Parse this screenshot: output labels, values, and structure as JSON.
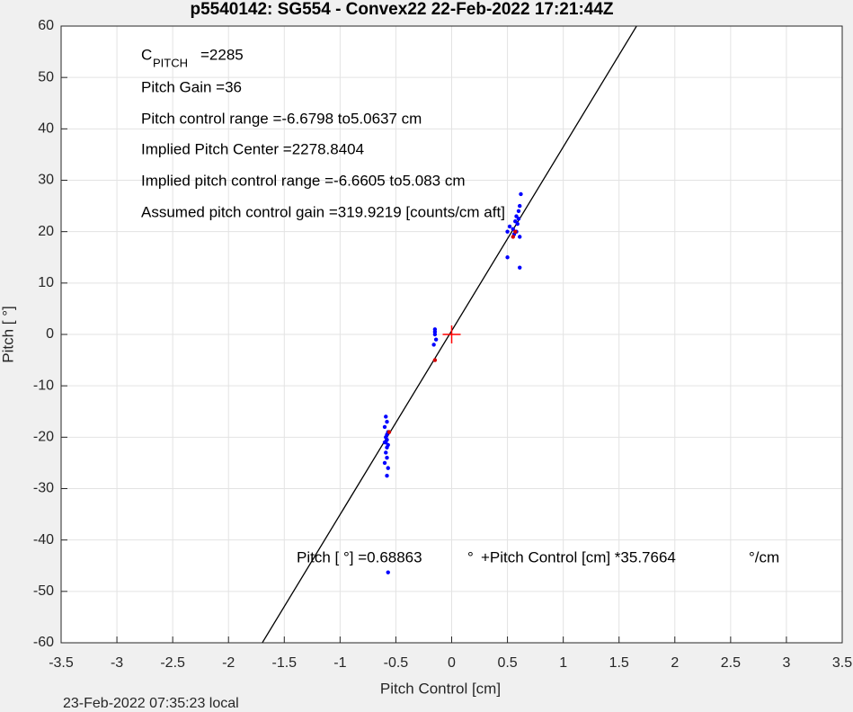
{
  "chart_data": {
    "type": "scatter",
    "title": "p5540142: SG554 - Convex22 22-Feb-2022 17:21:44Z",
    "xlabel": "Pitch Control [cm]",
    "ylabel": "Pitch [  °]",
    "footer": "23-Feb-2022 07:35:23 local",
    "xlim": [
      -3.5,
      3.5
    ],
    "ylim": [
      -60,
      60
    ],
    "xticks": [
      -3.5,
      -3,
      -2.5,
      -2,
      -1.5,
      -1,
      -0.5,
      0,
      0.5,
      1,
      1.5,
      2,
      2.5,
      3,
      3.5
    ],
    "yticks": [
      -60,
      -50,
      -40,
      -30,
      -20,
      -10,
      0,
      10,
      20,
      30,
      40,
      50,
      60
    ],
    "grid": true,
    "series": [
      {
        "color": "#0000ff",
        "marker": "dot",
        "x": [
          -0.59,
          -0.58,
          -0.6,
          -0.57,
          -0.59,
          -0.58,
          -0.6,
          -0.57,
          -0.58,
          -0.59,
          -0.58,
          -0.6,
          -0.57,
          -0.58,
          -0.59,
          -0.58,
          -0.57,
          -0.15,
          -0.15,
          -0.14,
          -0.16,
          -0.15,
          0.5,
          0.52,
          0.55,
          0.57,
          0.58,
          0.6,
          0.61,
          0.62,
          0.59,
          0.6,
          0.61,
          0.5,
          0.61,
          0.56,
          0.58
        ],
        "values": [
          -16,
          -17,
          -18,
          -19,
          -20,
          -20.5,
          -21,
          -21.5,
          -22,
          -23,
          -24,
          -25,
          -26,
          -27.5,
          -21,
          -19.5,
          -46.3,
          1,
          0,
          -1,
          -2,
          0.5,
          20,
          21,
          20.5,
          22,
          23,
          24,
          25,
          27.3,
          21.5,
          22.5,
          19,
          15,
          13,
          19.5,
          20
        ]
      },
      {
        "color": "#d40000",
        "marker": "dot",
        "x": [
          -0.56,
          -0.15,
          0.55,
          0.57
        ],
        "values": [
          -19,
          -5,
          19,
          20
        ]
      },
      {
        "color": "#000000",
        "marker": "line",
        "x": [
          -1.7,
          1.66
        ],
        "values": [
          -60.1,
          60.1
        ]
      },
      {
        "color": "#ff0000",
        "marker": "plus",
        "x": [
          0
        ],
        "values": [
          0
        ]
      }
    ],
    "annotations": {
      "c_pitch": [
        "C",
        "PITCH",
        "=2285"
      ],
      "lines": [
        "Pitch Gain =36",
        "Pitch control range =-6.6798 to5.0637 cm",
        "Implied Pitch Center =2278.8404",
        "Implied pitch control range =-6.6605 to5.083 cm",
        "Assumed pitch control gain =319.9219 [counts/cm aft]"
      ],
      "equation": [
        "Pitch [  °] =0.68863",
        "°",
        "+Pitch Control [cm] *35.7664",
        "°/cm"
      ]
    }
  }
}
